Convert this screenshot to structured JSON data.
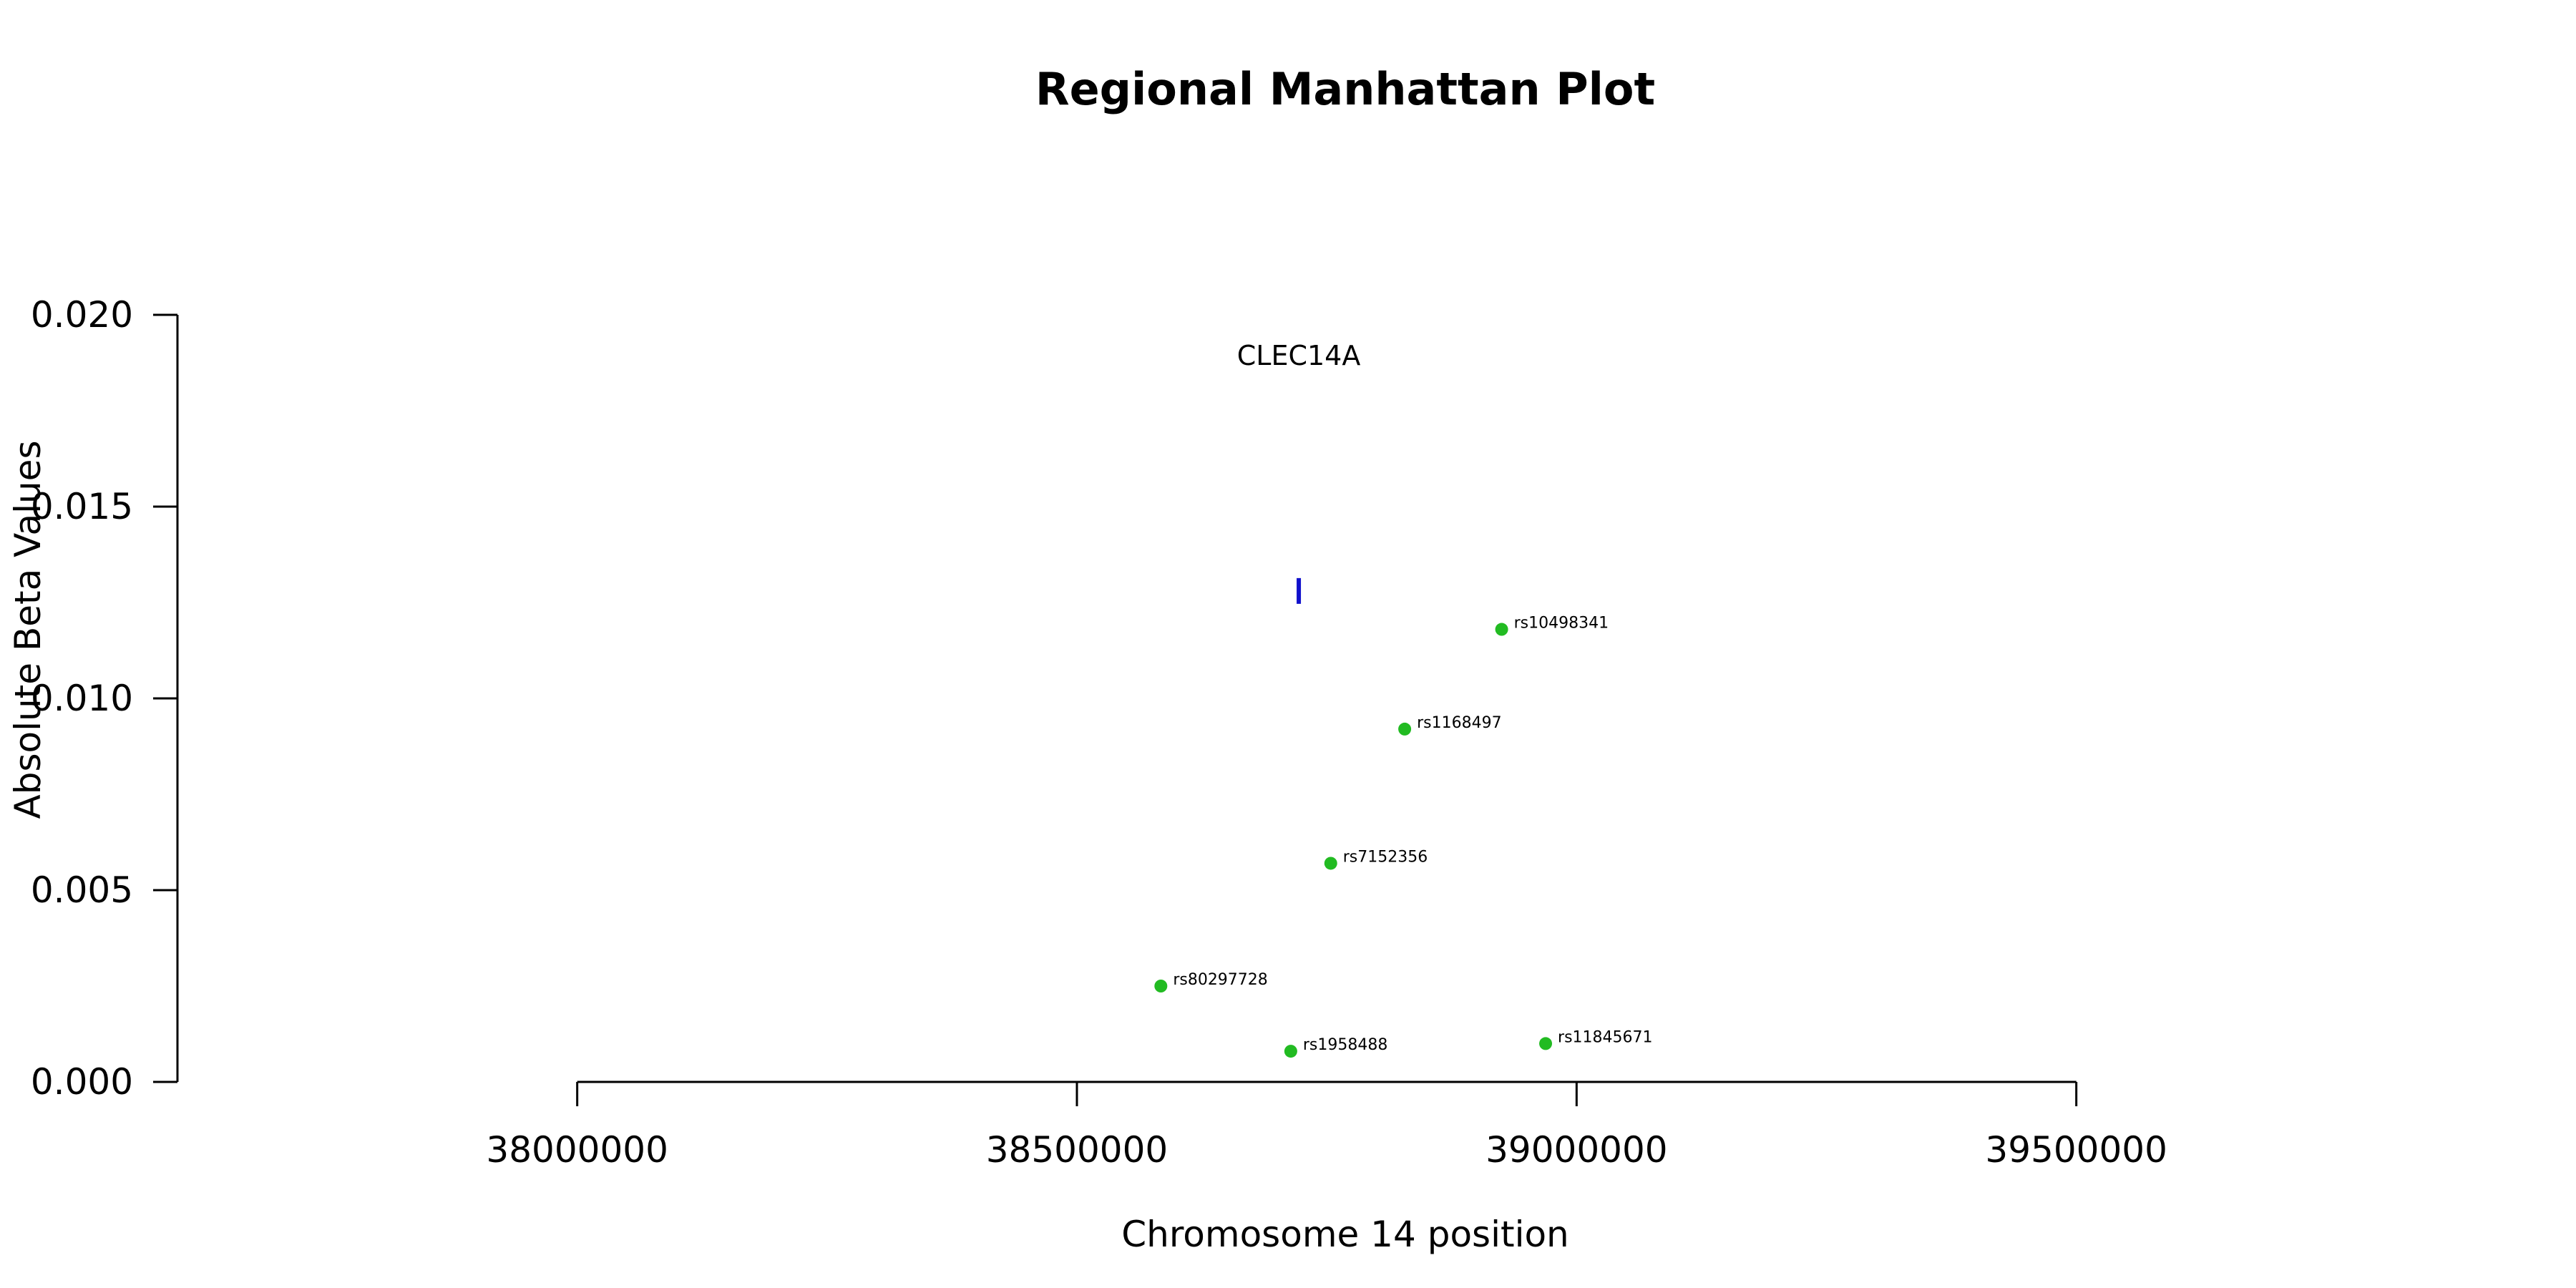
{
  "chart_data": {
    "type": "scatter",
    "title": "Regional Manhattan Plot",
    "xlabel": "Chromosome 14 position",
    "ylabel": "Absolute Beta Values",
    "xlim": [
      37600000,
      40000000
    ],
    "ylim": [
      0.0,
      0.02
    ],
    "x_ticks": [
      38000000,
      38500000,
      39000000,
      39500000
    ],
    "x_tick_labels": [
      "38000000",
      "38500000",
      "39000000",
      "39500000"
    ],
    "y_ticks": [
      0.0,
      0.005,
      0.01,
      0.015,
      0.02
    ],
    "y_tick_labels": [
      "0.000",
      "0.005",
      "0.010",
      "0.015",
      "0.020"
    ],
    "point_color": "#22bb22",
    "gene_color": "#1111cc",
    "points": [
      {
        "label": "rs10498341",
        "x": 38925000,
        "y": 0.0118
      },
      {
        "label": "rs1168497",
        "x": 38828000,
        "y": 0.0092
      },
      {
        "label": "rs7152356",
        "x": 38754000,
        "y": 0.0057
      },
      {
        "label": "rs80297728",
        "x": 38584000,
        "y": 0.0025
      },
      {
        "label": "rs1958488",
        "x": 38714000,
        "y": 0.0008
      },
      {
        "label": "rs11845671",
        "x": 38969000,
        "y": 0.001
      }
    ],
    "genes": [
      {
        "name": "CLEC14A",
        "x": 38722000,
        "y": 0.0128
      }
    ]
  }
}
